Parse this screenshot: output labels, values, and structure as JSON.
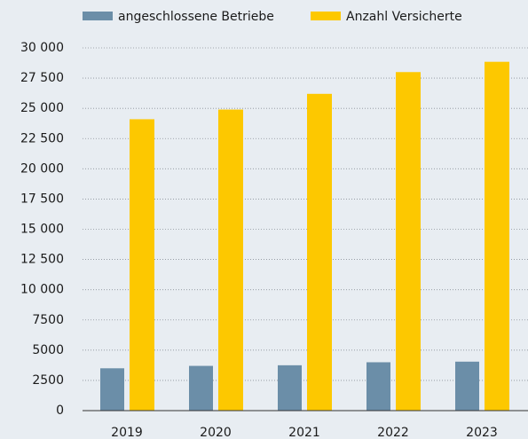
{
  "chart_data": {
    "type": "bar",
    "categories": [
      "2019",
      "2020",
      "2021",
      "2022",
      "2023"
    ],
    "series": [
      {
        "name": "angeschlossene Betriebe",
        "color": "#6b8ea8",
        "values": [
          3500,
          3700,
          3750,
          4000,
          4050
        ]
      },
      {
        "name": "Anzahl Versicherte",
        "color": "#fdc800",
        "values": [
          24100,
          24900,
          26200,
          28000,
          28850
        ]
      }
    ],
    "ylim": [
      0,
      30000
    ],
    "yticks": [
      0,
      2500,
      5000,
      7500,
      {
        "value": 10000,
        "label": "10 000"
      },
      {
        "value": 12500,
        "label": "12 500"
      },
      {
        "value": 15000,
        "label": "15 000"
      },
      {
        "value": 17500,
        "label": "17 500"
      },
      {
        "value": 20000,
        "label": "20 000"
      },
      {
        "value": 22500,
        "label": "22 500"
      },
      {
        "value": 25000,
        "label": "25 000"
      },
      {
        "value": 27500,
        "label": "27 500"
      },
      {
        "value": 30000,
        "label": "30 000"
      }
    ],
    "grid": true,
    "legend": "top"
  }
}
